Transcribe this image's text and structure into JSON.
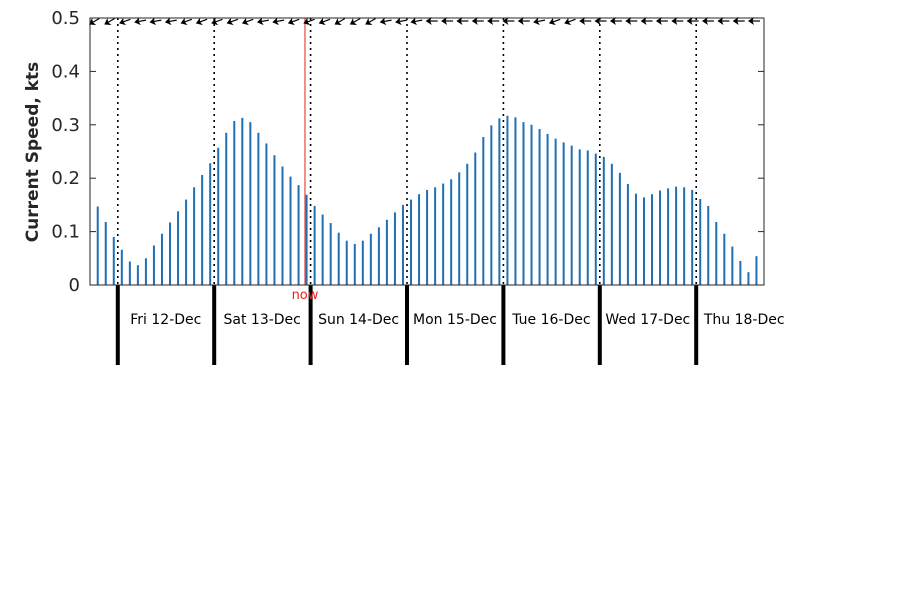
{
  "chart_data": {
    "type": "bar",
    "ylabel": "Current Speed, kts",
    "ylim": [
      0,
      0.5
    ],
    "yticks": [
      "0",
      "0.1",
      "0.2",
      "0.3",
      "0.4",
      "0.5"
    ],
    "bar_color": "#1f6fb4",
    "now_color": "#e8211b",
    "now_label": "now",
    "now_x": 26.8,
    "days": [
      "Fri 12-Dec",
      "Sat 13-Dec",
      "Sun 14-Dec",
      "Mon 15-Dec",
      "Tue 16-Dec",
      "Wed 17-Dec",
      "Thu 18-Dec"
    ],
    "values": [
      0.175,
      0.147,
      0.118,
      0.09,
      0.066,
      0.044,
      0.037,
      0.05,
      0.074,
      0.096,
      0.117,
      0.138,
      0.16,
      0.183,
      0.206,
      0.228,
      0.257,
      0.285,
      0.307,
      0.313,
      0.305,
      0.285,
      0.265,
      0.243,
      0.222,
      0.203,
      0.187,
      0.169,
      0.148,
      0.132,
      0.116,
      0.098,
      0.083,
      0.077,
      0.083,
      0.096,
      0.108,
      0.122,
      0.136,
      0.15,
      0.16,
      0.17,
      0.178,
      0.183,
      0.19,
      0.198,
      0.211,
      0.227,
      0.248,
      0.277,
      0.299,
      0.312,
      0.317,
      0.314,
      0.305,
      0.3,
      0.292,
      0.283,
      0.274,
      0.267,
      0.261,
      0.254,
      0.252,
      0.246,
      0.24,
      0.227,
      0.21,
      0.189,
      0.171,
      0.164,
      0.17,
      0.177,
      0.181,
      0.184,
      0.183,
      0.178,
      0.161,
      0.148,
      0.118,
      0.096,
      0.072,
      0.045,
      0.024,
      0.054,
      0.102,
      0.145,
      0.174,
      0.206,
      0.225,
      0.225,
      0.21,
      0.187,
      0.17,
      0.155,
      0.14,
      0.127,
      0.116,
      0.112,
      0.119,
      0.133,
      0.141,
      0.146,
      0.145,
      0.139,
      0.126,
      0.119,
      0.123,
      0.132,
      0.141,
      0.158,
      0.178,
      0.2,
      0.207,
      0.203,
      0.138,
      0.084,
      0.063,
      0.12,
      0.195,
      0.302,
      0.38,
      0.402,
      0.398,
      0.377,
      0.343,
      0.289,
      0.242,
      0.223,
      0.215,
      0.212,
      0.212,
      0.217,
      0.219,
      0.211,
      0.175,
      0.157,
      0.145,
      0.164,
      0.216,
      0.27,
      0.326,
      0.357,
      0.368,
      0.366,
      0.354,
      0.333,
      0.307,
      0.279,
      0.247,
      0.237,
      0.231,
      0.227,
      0.228,
      0.235,
      0.249,
      0.272,
      0.304,
      0.324,
      0.344,
      0.357,
      0.37,
      0.37,
      0.368
    ],
    "arrow_angles": [
      -30,
      -30,
      -20,
      -10,
      -10,
      -10,
      -20,
      -20,
      -20,
      -20,
      -20,
      -10,
      -10,
      -20,
      -20,
      -20,
      -30,
      -30,
      -30,
      -10,
      -10,
      -10,
      0,
      0,
      0,
      0,
      0,
      0,
      0,
      -10,
      -20,
      -20,
      0,
      0,
      0,
      0,
      0,
      0,
      0,
      0,
      0,
      0,
      0,
      0,
      0
    ]
  }
}
